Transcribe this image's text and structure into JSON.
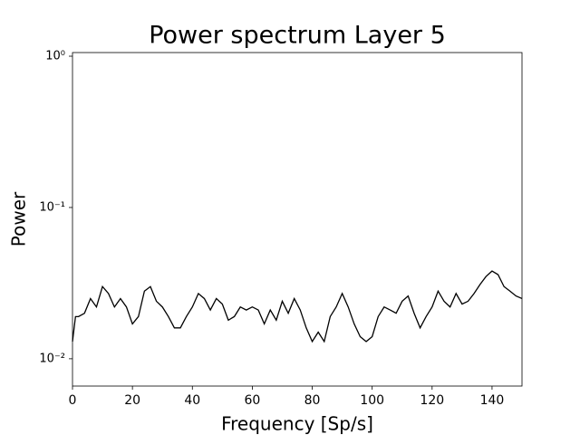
{
  "chart_data": {
    "type": "line",
    "title": "Power spectrum Layer 5",
    "xlabel": "Frequency [Sp/s]",
    "ylabel": "Power",
    "x": [
      0,
      1,
      2,
      4,
      6,
      8,
      10,
      12,
      14,
      16,
      18,
      20,
      22,
      24,
      26,
      28,
      30,
      32,
      34,
      36,
      38,
      40,
      42,
      44,
      46,
      48,
      50,
      52,
      54,
      56,
      58,
      60,
      62,
      64,
      66,
      68,
      70,
      72,
      74,
      76,
      78,
      80,
      82,
      84,
      86,
      88,
      90,
      92,
      94,
      96,
      98,
      100,
      102,
      104,
      106,
      108,
      110,
      112,
      114,
      116,
      118,
      120,
      122,
      124,
      126,
      128,
      130,
      132,
      134,
      136,
      138,
      140,
      142,
      144,
      146,
      148,
      150
    ],
    "values": [
      0.013,
      0.019,
      0.019,
      0.02,
      0.025,
      0.022,
      0.03,
      0.027,
      0.022,
      0.025,
      0.022,
      0.017,
      0.019,
      0.028,
      0.03,
      0.024,
      0.022,
      0.019,
      0.016,
      0.016,
      0.019,
      0.022,
      0.027,
      0.025,
      0.021,
      0.025,
      0.023,
      0.018,
      0.019,
      0.022,
      0.021,
      0.022,
      0.021,
      0.017,
      0.021,
      0.018,
      0.024,
      0.02,
      0.025,
      0.021,
      0.016,
      0.013,
      0.015,
      0.013,
      0.019,
      0.022,
      0.027,
      0.022,
      0.017,
      0.014,
      0.013,
      0.014,
      0.019,
      0.022,
      0.021,
      0.02,
      0.024,
      0.026,
      0.02,
      0.016,
      0.019,
      0.022,
      0.028,
      0.024,
      0.022,
      0.027,
      0.023,
      0.024,
      0.027,
      0.031,
      0.035,
      0.038,
      0.036,
      0.03,
      0.028,
      0.026,
      0.025
    ],
    "color": "#000000",
    "yscale": "log",
    "xlim": [
      0,
      150
    ],
    "xticks": [
      0,
      20,
      40,
      60,
      80,
      100,
      120,
      140
    ],
    "ylim": [
      0.0066,
      1.057
    ],
    "yticks": [
      {
        "value": 1,
        "label": "10⁰"
      },
      {
        "value": 0.1,
        "label": "10⁻¹"
      },
      {
        "value": 0.01,
        "label": "10⁻²"
      }
    ]
  }
}
